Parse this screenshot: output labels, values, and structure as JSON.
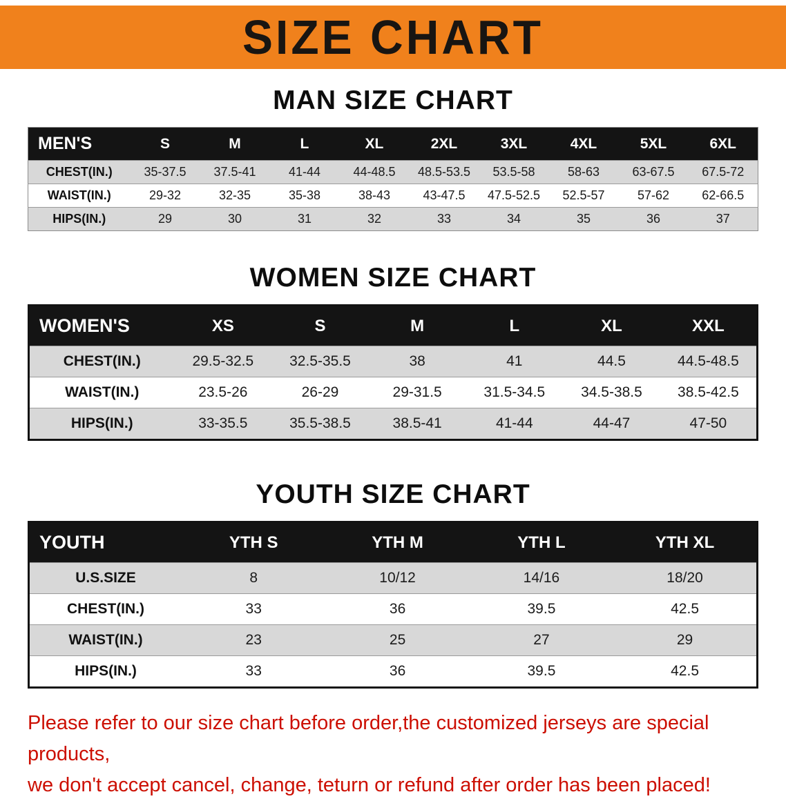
{
  "banner": {
    "title": "SIZE CHART"
  },
  "colors": {
    "banner_bg": "#F0811C",
    "header_bg": "#141414",
    "row_alt": "#d8d8d8",
    "note": "#cc0f02"
  },
  "sections": [
    {
      "title": "MAN SIZE CHART",
      "table": {
        "header": [
          "MEN'S",
          "S",
          "M",
          "L",
          "XL",
          "2XL",
          "3XL",
          "4XL",
          "5XL",
          "6XL"
        ],
        "rows": [
          [
            "CHEST(IN.)",
            "35-37.5",
            "37.5-41",
            "41-44",
            "44-48.5",
            "48.5-53.5",
            "53.5-58",
            "58-63",
            "63-67.5",
            "67.5-72"
          ],
          [
            "WAIST(IN.)",
            "29-32",
            "32-35",
            "35-38",
            "38-43",
            "43-47.5",
            "47.5-52.5",
            "52.5-57",
            "57-62",
            "62-66.5"
          ],
          [
            "HIPS(IN.)",
            "29",
            "30",
            "31",
            "32",
            "33",
            "34",
            "35",
            "36",
            "37"
          ]
        ]
      }
    },
    {
      "title": "WOMEN SIZE CHART",
      "table": {
        "header": [
          "WOMEN'S",
          "XS",
          "S",
          "M",
          "L",
          "XL",
          "XXL"
        ],
        "rows": [
          [
            "CHEST(IN.)",
            "29.5-32.5",
            "32.5-35.5",
            "38",
            "41",
            "44.5",
            "44.5-48.5"
          ],
          [
            "WAIST(IN.)",
            "23.5-26",
            "26-29",
            "29-31.5",
            "31.5-34.5",
            "34.5-38.5",
            "38.5-42.5"
          ],
          [
            "HIPS(IN.)",
            "33-35.5",
            "35.5-38.5",
            "38.5-41",
            "41-44",
            "44-47",
            "47-50"
          ]
        ]
      }
    },
    {
      "title": "YOUTH SIZE CHART",
      "table": {
        "header": [
          "YOUTH",
          "YTH S",
          "YTH M",
          "YTH L",
          "YTH XL"
        ],
        "rows": [
          [
            "U.S.SIZE",
            "8",
            "10/12",
            "14/16",
            "18/20"
          ],
          [
            "CHEST(IN.)",
            "33",
            "36",
            "39.5",
            "42.5"
          ],
          [
            "WAIST(IN.)",
            "23",
            "25",
            "27",
            "29"
          ],
          [
            "HIPS(IN.)",
            "33",
            "36",
            "39.5",
            "42.5"
          ]
        ]
      }
    }
  ],
  "note": {
    "line1": "Please refer to our size chart before order,the customized jerseys are special products,",
    "line2": "we don't accept cancel, change, teturn or refund after order has been placed!"
  }
}
